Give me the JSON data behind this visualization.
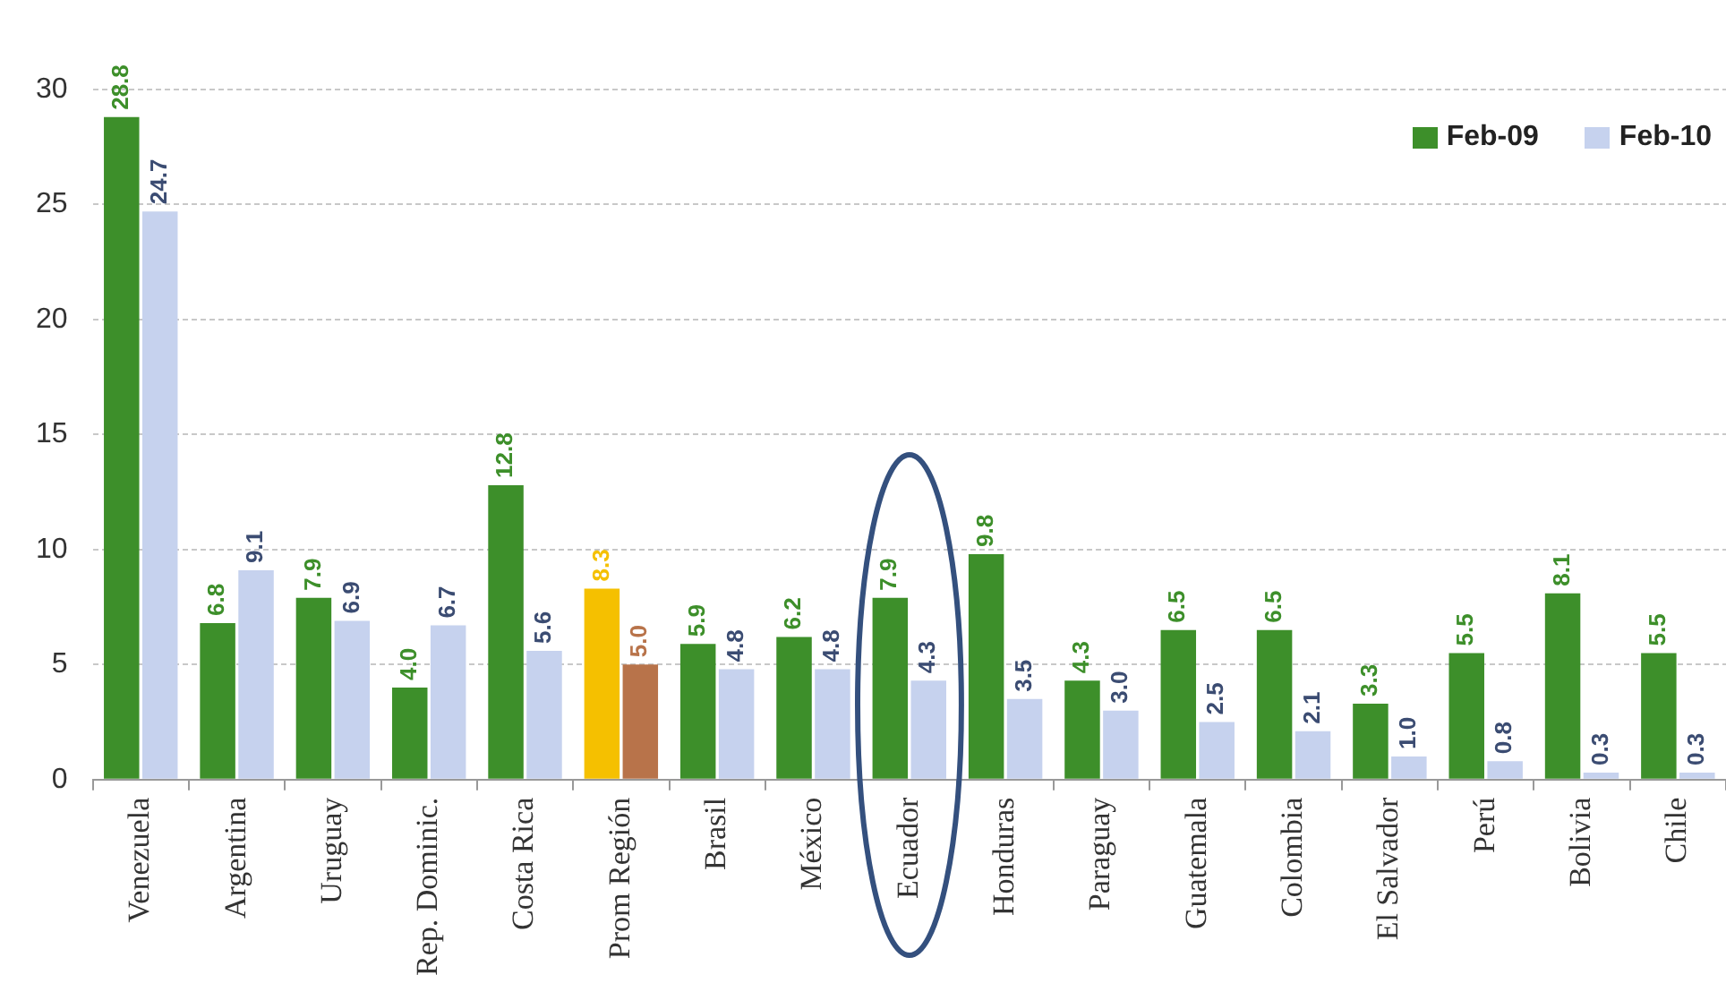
{
  "chart_data": {
    "type": "bar",
    "categories": [
      "Venezuela",
      "Argentina",
      "Uruguay",
      "Rep. Dominic.",
      "Costa Rica",
      "Prom Región",
      "Brasil",
      "México",
      "Ecuador",
      "Honduras",
      "Paraguay",
      "Guatemala",
      "Colombia",
      "El Salvador",
      "Perú",
      "Bolivia",
      "Chile"
    ],
    "series": [
      {
        "name": "Feb-09",
        "color": "#3d8f2a",
        "colors": [
          "#3d8f2a",
          "#3d8f2a",
          "#3d8f2a",
          "#3d8f2a",
          "#3d8f2a",
          "#f5c000",
          "#3d8f2a",
          "#3d8f2a",
          "#3d8f2a",
          "#3d8f2a",
          "#3d8f2a",
          "#3d8f2a",
          "#3d8f2a",
          "#3d8f2a",
          "#3d8f2a",
          "#3d8f2a",
          "#3d8f2a"
        ],
        "values": [
          28.8,
          6.8,
          7.9,
          4.0,
          12.8,
          8.3,
          5.9,
          6.2,
          7.9,
          9.8,
          4.3,
          6.5,
          6.5,
          3.3,
          5.5,
          8.1,
          5.5
        ],
        "value_labels": [
          "28.8",
          "6.8",
          "7.9",
          "4.0",
          "12.8",
          "8.3",
          "5.9",
          "6.2",
          "7.9",
          "9.8",
          "4.3",
          "6.5",
          "6.5",
          "3.3",
          "5.5",
          "8.1",
          "5.5"
        ]
      },
      {
        "name": "Feb-10",
        "color": "#c6d2ee",
        "colors": [
          "#c6d2ee",
          "#c6d2ee",
          "#c6d2ee",
          "#c6d2ee",
          "#c6d2ee",
          "#b8734a",
          "#c6d2ee",
          "#c6d2ee",
          "#c6d2ee",
          "#c6d2ee",
          "#c6d2ee",
          "#c6d2ee",
          "#c6d2ee",
          "#c6d2ee",
          "#c6d2ee",
          "#c6d2ee",
          "#c6d2ee"
        ],
        "values": [
          24.7,
          9.1,
          6.9,
          6.7,
          5.6,
          5.0,
          4.8,
          4.8,
          4.3,
          3.5,
          3.0,
          2.5,
          2.1,
          1.0,
          0.8,
          0.3,
          0.3
        ],
        "value_labels": [
          "24.7",
          "9.1",
          "6.9",
          "6.7",
          "5.6",
          "5.0",
          "4.8",
          "4.8",
          "4.3",
          "3.5",
          "3.0",
          "2.5",
          "2.1",
          "1.0",
          "0.8",
          "0.3",
          "0.3"
        ]
      }
    ],
    "ylim": [
      0,
      30
    ],
    "yticks": [
      0,
      5,
      10,
      15,
      20,
      25,
      30
    ],
    "grid": "y",
    "legend": "top right"
  }
}
